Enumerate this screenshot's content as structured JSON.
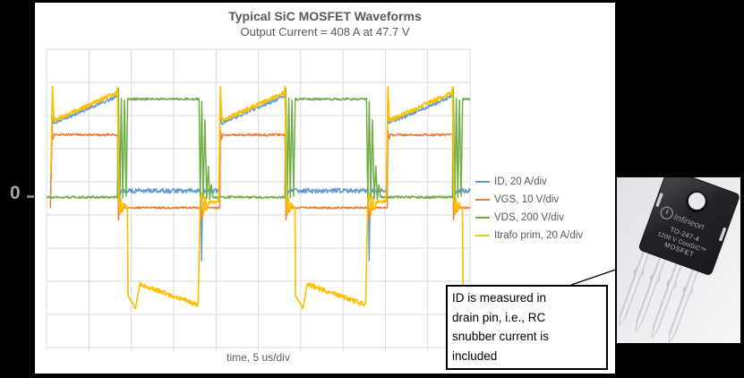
{
  "chart_data": {
    "type": "line",
    "title": "Typical SiC MOSFET Waveforms",
    "subtitle": "Output Current = 408 A at 47.7 V",
    "xlabel": "time, 5 us/div",
    "x_axis": {
      "divisions": 10,
      "div_unit": "5 us"
    },
    "y_axis": {
      "divisions": 9,
      "zero_label": "0"
    },
    "grid": true,
    "grid_color": "#d9d9d9",
    "legend_position": "right-middle",
    "background": "#ffffff",
    "series": [
      {
        "name": "ID, 20 A/div",
        "color": "#5B9BD5",
        "points": [
          [
            0.095,
            0.1,
            0
          ],
          [
            0.145,
            2.42,
            0
          ],
          [
            0.175,
            2.2,
            2
          ],
          [
            1.655,
            3.01,
            2
          ],
          [
            1.675,
            3.18,
            0
          ],
          [
            1.71,
            0.35,
            0
          ],
          [
            1.74,
            0.06,
            0
          ],
          [
            1.77,
            0.16,
            2.6
          ],
          [
            3.64,
            0.16,
            0
          ],
          [
            3.66,
            -1.96,
            0
          ],
          [
            3.685,
            -0.1,
            0
          ],
          [
            3.71,
            0.16,
            2.6
          ],
          [
            4.085,
            0.16,
            0
          ],
          [
            4.1,
            2.42,
            0
          ],
          [
            4.13,
            2.2,
            2
          ],
          [
            5.61,
            3.01,
            2
          ],
          [
            5.63,
            3.18,
            0
          ],
          [
            5.665,
            0.35,
            0
          ],
          [
            5.695,
            0.06,
            0
          ],
          [
            5.725,
            0.16,
            2.6
          ],
          [
            7.595,
            0.16,
            0
          ],
          [
            7.617,
            -1.96,
            0
          ],
          [
            7.645,
            -0.05,
            0
          ],
          [
            7.665,
            0.16,
            2.6
          ],
          [
            8.04,
            0.16,
            0
          ],
          [
            8.055,
            2.42,
            0
          ],
          [
            8.085,
            2.2,
            2
          ],
          [
            9.565,
            3.01,
            2
          ],
          [
            9.585,
            3.18,
            0
          ],
          [
            9.62,
            0.35,
            0
          ],
          [
            9.65,
            0.06,
            0
          ],
          [
            9.68,
            0.16,
            2.6
          ],
          [
            10.0,
            0.16,
            0
          ]
        ]
      },
      {
        "name": "VGS, 10 V/div",
        "color": "#ED7D31",
        "points": [
          [
            0.09,
            -0.35,
            0
          ],
          [
            0.125,
            1.98,
            0
          ],
          [
            0.155,
            1.72,
            0
          ],
          [
            0.185,
            1.88,
            0
          ],
          [
            0.215,
            1.85,
            1.3
          ],
          [
            1.675,
            1.85,
            0
          ],
          [
            1.7,
            -0.72,
            0
          ],
          [
            1.73,
            -0.12,
            0
          ],
          [
            1.76,
            -0.48,
            0
          ],
          [
            1.79,
            -0.3,
            0
          ],
          [
            1.82,
            -0.35,
            1.1
          ],
          [
            3.645,
            -0.35,
            0
          ],
          [
            3.67,
            -0.72,
            0
          ],
          [
            3.7,
            -0.2,
            0
          ],
          [
            3.73,
            -0.42,
            0
          ],
          [
            3.76,
            -0.35,
            1.1
          ],
          [
            4.09,
            -0.35,
            0
          ],
          [
            4.105,
            1.98,
            0
          ],
          [
            4.135,
            1.72,
            0
          ],
          [
            4.165,
            1.88,
            0
          ],
          [
            4.195,
            1.85,
            1.3
          ],
          [
            5.63,
            1.85,
            0
          ],
          [
            5.655,
            -0.72,
            0
          ],
          [
            5.685,
            -0.12,
            0
          ],
          [
            5.715,
            -0.48,
            0
          ],
          [
            5.745,
            -0.3,
            0
          ],
          [
            5.775,
            -0.35,
            1.1
          ],
          [
            7.6,
            -0.35,
            0
          ],
          [
            7.625,
            -0.72,
            0
          ],
          [
            7.655,
            -0.2,
            0
          ],
          [
            7.685,
            -0.42,
            0
          ],
          [
            7.715,
            -0.35,
            1.1
          ],
          [
            8.045,
            -0.35,
            0
          ],
          [
            8.06,
            1.98,
            0
          ],
          [
            8.09,
            1.72,
            0
          ],
          [
            8.12,
            1.88,
            0
          ],
          [
            8.15,
            1.85,
            1.3
          ],
          [
            9.585,
            1.85,
            0
          ],
          [
            9.61,
            -0.72,
            0
          ],
          [
            9.64,
            -0.12,
            0
          ],
          [
            9.67,
            -0.48,
            0
          ],
          [
            9.7,
            -0.3,
            0
          ],
          [
            9.73,
            -0.35,
            1.1
          ],
          [
            10.0,
            -0.35,
            0
          ]
        ]
      },
      {
        "name": "VDS, 200 V/div",
        "color": "#70AD47",
        "points": [
          [
            0.0,
            -0.03,
            1.2
          ],
          [
            1.675,
            -0.03,
            0
          ],
          [
            1.695,
            3.25,
            0
          ],
          [
            1.73,
            -0.1,
            0
          ],
          [
            1.765,
            2.95,
            0
          ],
          [
            1.8,
            -0.05,
            0
          ],
          [
            1.84,
            2.9,
            0
          ],
          [
            1.88,
            0.0,
            0
          ],
          [
            1.915,
            2.93,
            1.2
          ],
          [
            3.6,
            2.93,
            0
          ],
          [
            3.63,
            -0.08,
            0
          ],
          [
            3.665,
            2.85,
            0
          ],
          [
            3.7,
            -0.05,
            0
          ],
          [
            3.74,
            2.3,
            0
          ],
          [
            3.78,
            -0.08,
            0
          ],
          [
            3.82,
            0.9,
            0
          ],
          [
            3.855,
            -0.1,
            0
          ],
          [
            3.89,
            0.35,
            0
          ],
          [
            3.93,
            -0.03,
            1.2
          ],
          [
            5.63,
            -0.03,
            0
          ],
          [
            5.65,
            3.25,
            0
          ],
          [
            5.685,
            -0.1,
            0
          ],
          [
            5.72,
            2.95,
            0
          ],
          [
            5.755,
            -0.05,
            0
          ],
          [
            5.795,
            2.9,
            0
          ],
          [
            5.835,
            0.0,
            0
          ],
          [
            5.87,
            2.93,
            1.2
          ],
          [
            7.555,
            2.93,
            0
          ],
          [
            7.585,
            -0.08,
            0
          ],
          [
            7.62,
            2.85,
            0
          ],
          [
            7.655,
            -0.05,
            0
          ],
          [
            7.695,
            2.3,
            0
          ],
          [
            7.735,
            -0.08,
            0
          ],
          [
            7.775,
            0.9,
            0
          ],
          [
            7.81,
            -0.1,
            0
          ],
          [
            7.845,
            0.35,
            0
          ],
          [
            7.885,
            -0.03,
            1.2
          ],
          [
            9.585,
            -0.03,
            0
          ],
          [
            9.605,
            3.25,
            0
          ],
          [
            9.64,
            -0.1,
            0
          ],
          [
            9.675,
            2.95,
            0
          ],
          [
            9.71,
            -0.05,
            0
          ],
          [
            9.75,
            2.9,
            0
          ],
          [
            9.79,
            0.0,
            0
          ],
          [
            9.825,
            2.93,
            1.2
          ],
          [
            10.0,
            2.93,
            0
          ]
        ]
      },
      {
        "name": "Itrafo prim, 20 A/div",
        "color": "#FFC000",
        "points": [
          [
            0.1,
            0.7,
            0
          ],
          [
            0.14,
            3.31,
            0
          ],
          [
            0.175,
            2.28,
            2.4
          ],
          [
            1.655,
            3.12,
            2.4
          ],
          [
            1.675,
            3.31,
            0
          ],
          [
            1.71,
            -0.15,
            0
          ],
          [
            1.735,
            -0.55,
            0
          ],
          [
            1.76,
            -0.08,
            0
          ],
          [
            1.79,
            -0.48,
            0
          ],
          [
            1.815,
            -0.22,
            1.6
          ],
          [
            1.91,
            -0.35,
            0
          ],
          [
            1.925,
            -3.0,
            0
          ],
          [
            2.1,
            -3.39,
            0
          ],
          [
            2.2,
            -2.66,
            2.6
          ],
          [
            3.58,
            -3.28,
            0
          ],
          [
            3.63,
            -0.1,
            0
          ],
          [
            3.665,
            0.08,
            0
          ],
          [
            3.705,
            -0.55,
            0
          ],
          [
            3.745,
            -0.02,
            0
          ],
          [
            3.785,
            -0.42,
            0
          ],
          [
            3.825,
            -0.18,
            1.6
          ],
          [
            4.065,
            -0.15,
            0
          ],
          [
            4.105,
            3.31,
            0
          ],
          [
            4.14,
            2.28,
            2.4
          ],
          [
            5.61,
            3.12,
            2.4
          ],
          [
            5.63,
            3.31,
            0
          ],
          [
            5.665,
            -0.15,
            0
          ],
          [
            5.69,
            -0.55,
            0
          ],
          [
            5.715,
            -0.08,
            0
          ],
          [
            5.745,
            -0.48,
            0
          ],
          [
            5.77,
            -0.22,
            1.6
          ],
          [
            5.865,
            -0.35,
            0
          ],
          [
            5.88,
            -3.0,
            0
          ],
          [
            6.055,
            -3.39,
            0
          ],
          [
            6.155,
            -2.66,
            2.6
          ],
          [
            7.535,
            -3.28,
            0
          ],
          [
            7.585,
            -0.1,
            0
          ],
          [
            7.62,
            0.08,
            0
          ],
          [
            7.66,
            -0.55,
            0
          ],
          [
            7.7,
            -0.02,
            0
          ],
          [
            7.74,
            -0.42,
            0
          ],
          [
            7.78,
            -0.18,
            1.6
          ],
          [
            8.02,
            -0.15,
            0
          ],
          [
            8.06,
            3.31,
            0
          ],
          [
            8.095,
            2.28,
            2.4
          ],
          [
            9.565,
            3.12,
            2.4
          ],
          [
            9.585,
            3.31,
            0
          ],
          [
            9.62,
            -0.15,
            0
          ],
          [
            9.645,
            -0.55,
            0
          ],
          [
            9.67,
            -0.08,
            0
          ],
          [
            9.7,
            -0.48,
            0
          ],
          [
            9.725,
            -0.22,
            1.6
          ],
          [
            9.82,
            -0.35,
            0
          ],
          [
            9.835,
            -3.0,
            0
          ],
          [
            10.0,
            -3.3,
            0
          ]
        ]
      }
    ]
  },
  "note": {
    "text": "ID is measured in\ndrain pin, i.e., RC\nsnubber current is\nincluded"
  },
  "package_photo": {
    "brand": "Infineon",
    "line1": "TO-247-4",
    "line2": "1200 V CoolSiC™",
    "line3": "MOSFET"
  }
}
